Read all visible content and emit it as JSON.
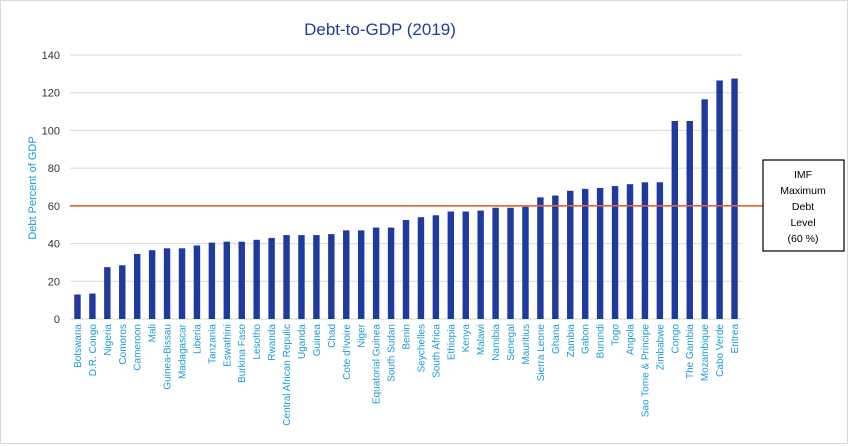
{
  "chart_data": {
    "type": "bar",
    "title": "Debt-to-GDP (2019)",
    "xlabel": "",
    "ylabel": "Debt Percent of GDP",
    "ylim": [
      0,
      140
    ],
    "yticks": [
      0,
      20,
      40,
      60,
      80,
      100,
      120,
      140
    ],
    "grid": true,
    "bar_color": "#1f3a9e",
    "categories": [
      "Botswana",
      "D.R. Congo",
      "Nigeria",
      "Comoros",
      "Cameroon",
      "Mali",
      "Guinea-Bissau",
      "Madagascar",
      "Liberia",
      "Tanzania",
      "Eswathini",
      "Burkina Faso",
      "Lesotho",
      "Rwanda",
      "Central African Repulic",
      "Uganda",
      "Guinea",
      "Chad",
      "Cote d'Ivoire",
      "Niger",
      "Equatorial Guinea",
      "South Sudan",
      "Benin",
      "Seychelles",
      "South Africa",
      "Ethiopia",
      "Kenya",
      "Malawi",
      "Namibia",
      "Senegal",
      "Mauritius",
      "Sierra Leone",
      "Ghana",
      "Zambia",
      "Gabon",
      "Burundi",
      "Togo",
      "Angola",
      "Sao Tome & Principe",
      "Zimbabwe",
      "Congo",
      "The Gambia",
      "Mozambique",
      "Cabo Verde",
      "Eritrea"
    ],
    "values": [
      13,
      13.5,
      27.5,
      28.5,
      34.5,
      36.5,
      37.5,
      37.5,
      39,
      40.5,
      41,
      41,
      42,
      43,
      44.5,
      44.5,
      44.5,
      45,
      47,
      47,
      48.5,
      48.5,
      52.5,
      54,
      55,
      57,
      57,
      57.5,
      59,
      59,
      59.5,
      64.5,
      65.5,
      68,
      69,
      69.5,
      70.5,
      71.5,
      72.5,
      72.5,
      105,
      105,
      116.5,
      126.5,
      127.5
    ],
    "reference_line": {
      "value": 60,
      "color": "#e8622c"
    },
    "annotation": {
      "lines": [
        "IMF",
        "Maximum",
        "Debt",
        "Level",
        "(60 %)"
      ]
    }
  }
}
